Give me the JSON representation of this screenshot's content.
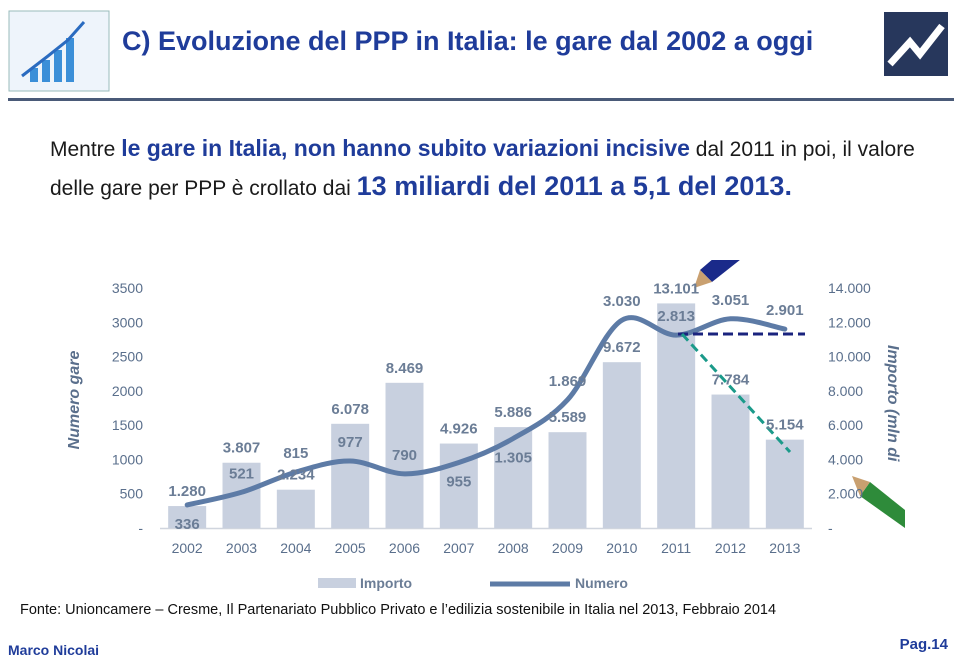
{
  "header": {
    "title": "C) Evoluzione del PPP in Italia: le gare dal 2002 a oggi"
  },
  "intro": {
    "parts": [
      "Mentre",
      "le gare in Italia, non hanno subito variazioni incisive",
      "dal 2011 in poi, il valore delle gare per PPP è crollato dai",
      "13 miliardi del 2011 a 5,1 del 2013."
    ]
  },
  "chart_data": {
    "type": "bar-line",
    "categories": [
      "2002",
      "2003",
      "2004",
      "2005",
      "2006",
      "2007",
      "2008",
      "2009",
      "2010",
      "2011",
      "2012",
      "2013"
    ],
    "y_label": "Numero gare",
    "y2_label": "Importo (mln di",
    "ylim": [
      0,
      3500
    ],
    "yticks": [
      {
        "value": 0,
        "label": "-"
      },
      500,
      1000,
      1500,
      2000,
      2500,
      3000,
      3500
    ],
    "yticks_fixed": true,
    "y2lim": [
      0,
      14000
    ],
    "y2ticks": [
      {
        "value": 0,
        "label": "-"
      },
      {
        "value": 2000,
        "label": "2.000"
      },
      {
        "value": 4000,
        "label": "4.000"
      },
      {
        "value": 6000,
        "label": "6.000"
      },
      {
        "value": 8000,
        "label": "8.000"
      },
      {
        "value": 10000,
        "label": "10.000"
      },
      {
        "value": 12000,
        "label": "12.000"
      },
      {
        "value": 14000,
        "label": "14.000"
      }
    ],
    "series": [
      {
        "name": "Importo",
        "type": "bar",
        "axis": "y2",
        "color": "#c8d0df",
        "values": [
          1280,
          3807,
          2234,
          6078,
          8469,
          4926,
          5886,
          5589,
          9672,
          13101,
          7784,
          5154
        ],
        "value_labels": [
          "1.280",
          "3.807",
          "2.234",
          "6.078",
          "8.469",
          "4.926",
          "5.886",
          "5.589",
          "9.672",
          "13.101",
          "7.784",
          "5.154"
        ]
      },
      {
        "name": "Numero",
        "type": "line",
        "color": "#5d7ba6",
        "values": [
          336,
          521,
          815,
          977,
          790,
          955,
          1305,
          1869,
          3030,
          2813,
          3051,
          2901
        ],
        "value_labels": [
          "336",
          "521",
          "815",
          "977",
          "790",
          "955",
          "1.305",
          "1.869",
          "3.030",
          "2.813",
          "3.051",
          "2.901"
        ]
      }
    ],
    "grid": false,
    "legend": "bottom"
  },
  "source": "Fonte: Unioncamere – Cresme, Il Partenariato Pubblico Privato e l’edilizia sostenibile in Italia nel 2013, Febbraio 2014",
  "footer": {
    "author": "Marco Nicolai",
    "page": "Pag.14"
  }
}
